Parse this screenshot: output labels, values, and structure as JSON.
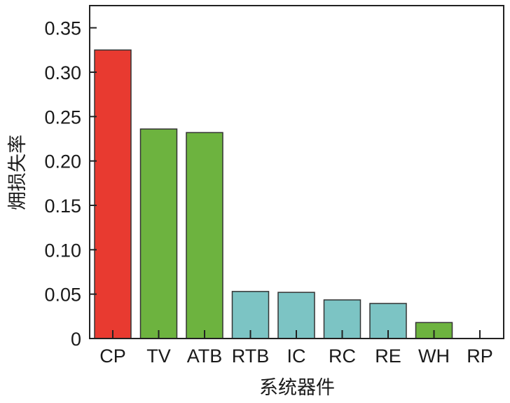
{
  "chart_data": {
    "type": "bar",
    "title": "",
    "xlabel": "系统器件",
    "ylabel": "㶲损失率",
    "categories": [
      "CP",
      "TV",
      "ATB",
      "RTB",
      "IC",
      "RC",
      "RE",
      "WH",
      "RP"
    ],
    "values": [
      0.325,
      0.236,
      0.232,
      0.053,
      0.052,
      0.0435,
      0.0395,
      0.018,
      0.0
    ],
    "colors": [
      "#e83a30",
      "#6db33f",
      "#6db33f",
      "#7cc4c4",
      "#7cc4c4",
      "#7cc4c4",
      "#7cc4c4",
      "#6db33f",
      "#7cc4c4"
    ],
    "ylim": [
      0,
      0.375
    ],
    "yticks": [
      0,
      0.05,
      0.1,
      0.15,
      0.2,
      0.25,
      0.3,
      0.35
    ],
    "ytick_labels": [
      "0",
      "0.05",
      "0.10",
      "0.15",
      "0.20",
      "0.25",
      "0.30",
      "0.35"
    ],
    "grid": false,
    "legend": "none"
  }
}
